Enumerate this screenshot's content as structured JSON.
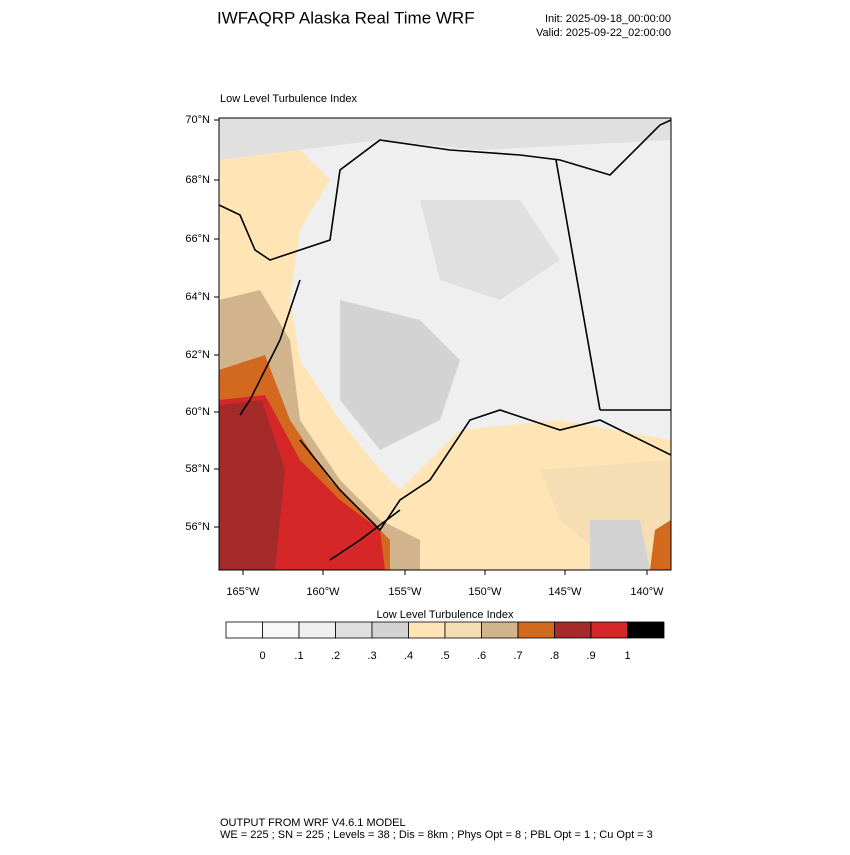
{
  "header": {
    "title": "IWFAQRP Alaska Real Time WRF",
    "init": "Init: 2025-09-18_00:00:00",
    "valid": "Valid: 2025-09-22_02:00:00"
  },
  "map": {
    "label": "Low Level Turbulence Index",
    "lat_labels": [
      "70°N",
      "68°N",
      "66°N",
      "64°N",
      "62°N",
      "60°N",
      "58°N",
      "56°N"
    ],
    "lon_labels": [
      "165°W",
      "160°W",
      "155°W",
      "150°W",
      "145°W",
      "140°W"
    ]
  },
  "colorbar": {
    "title": "Low Level Turbulence Index",
    "colors": [
      "#ffffff",
      "#f8f8f8",
      "#efefef",
      "#e0e0e0",
      "#d3d3d3",
      "#ffe4b5",
      "#f5deb3",
      "#d2b48c",
      "#d2691e",
      "#a52a2a",
      "#d62728",
      "#000000"
    ],
    "labels": [
      "0",
      ".1",
      ".2",
      ".3",
      ".4",
      ".5",
      ".6",
      ".7",
      ".8",
      ".9",
      "1"
    ]
  },
  "footer": {
    "line1": "OUTPUT FROM WRF V4.6.1 MODEL",
    "line2": "WE = 225 ; SN = 225 ; Levels = 38 ; Dis = 8km ; Phys Opt = 8 ; PBL Opt = 1 ; Cu Opt = 3"
  }
}
